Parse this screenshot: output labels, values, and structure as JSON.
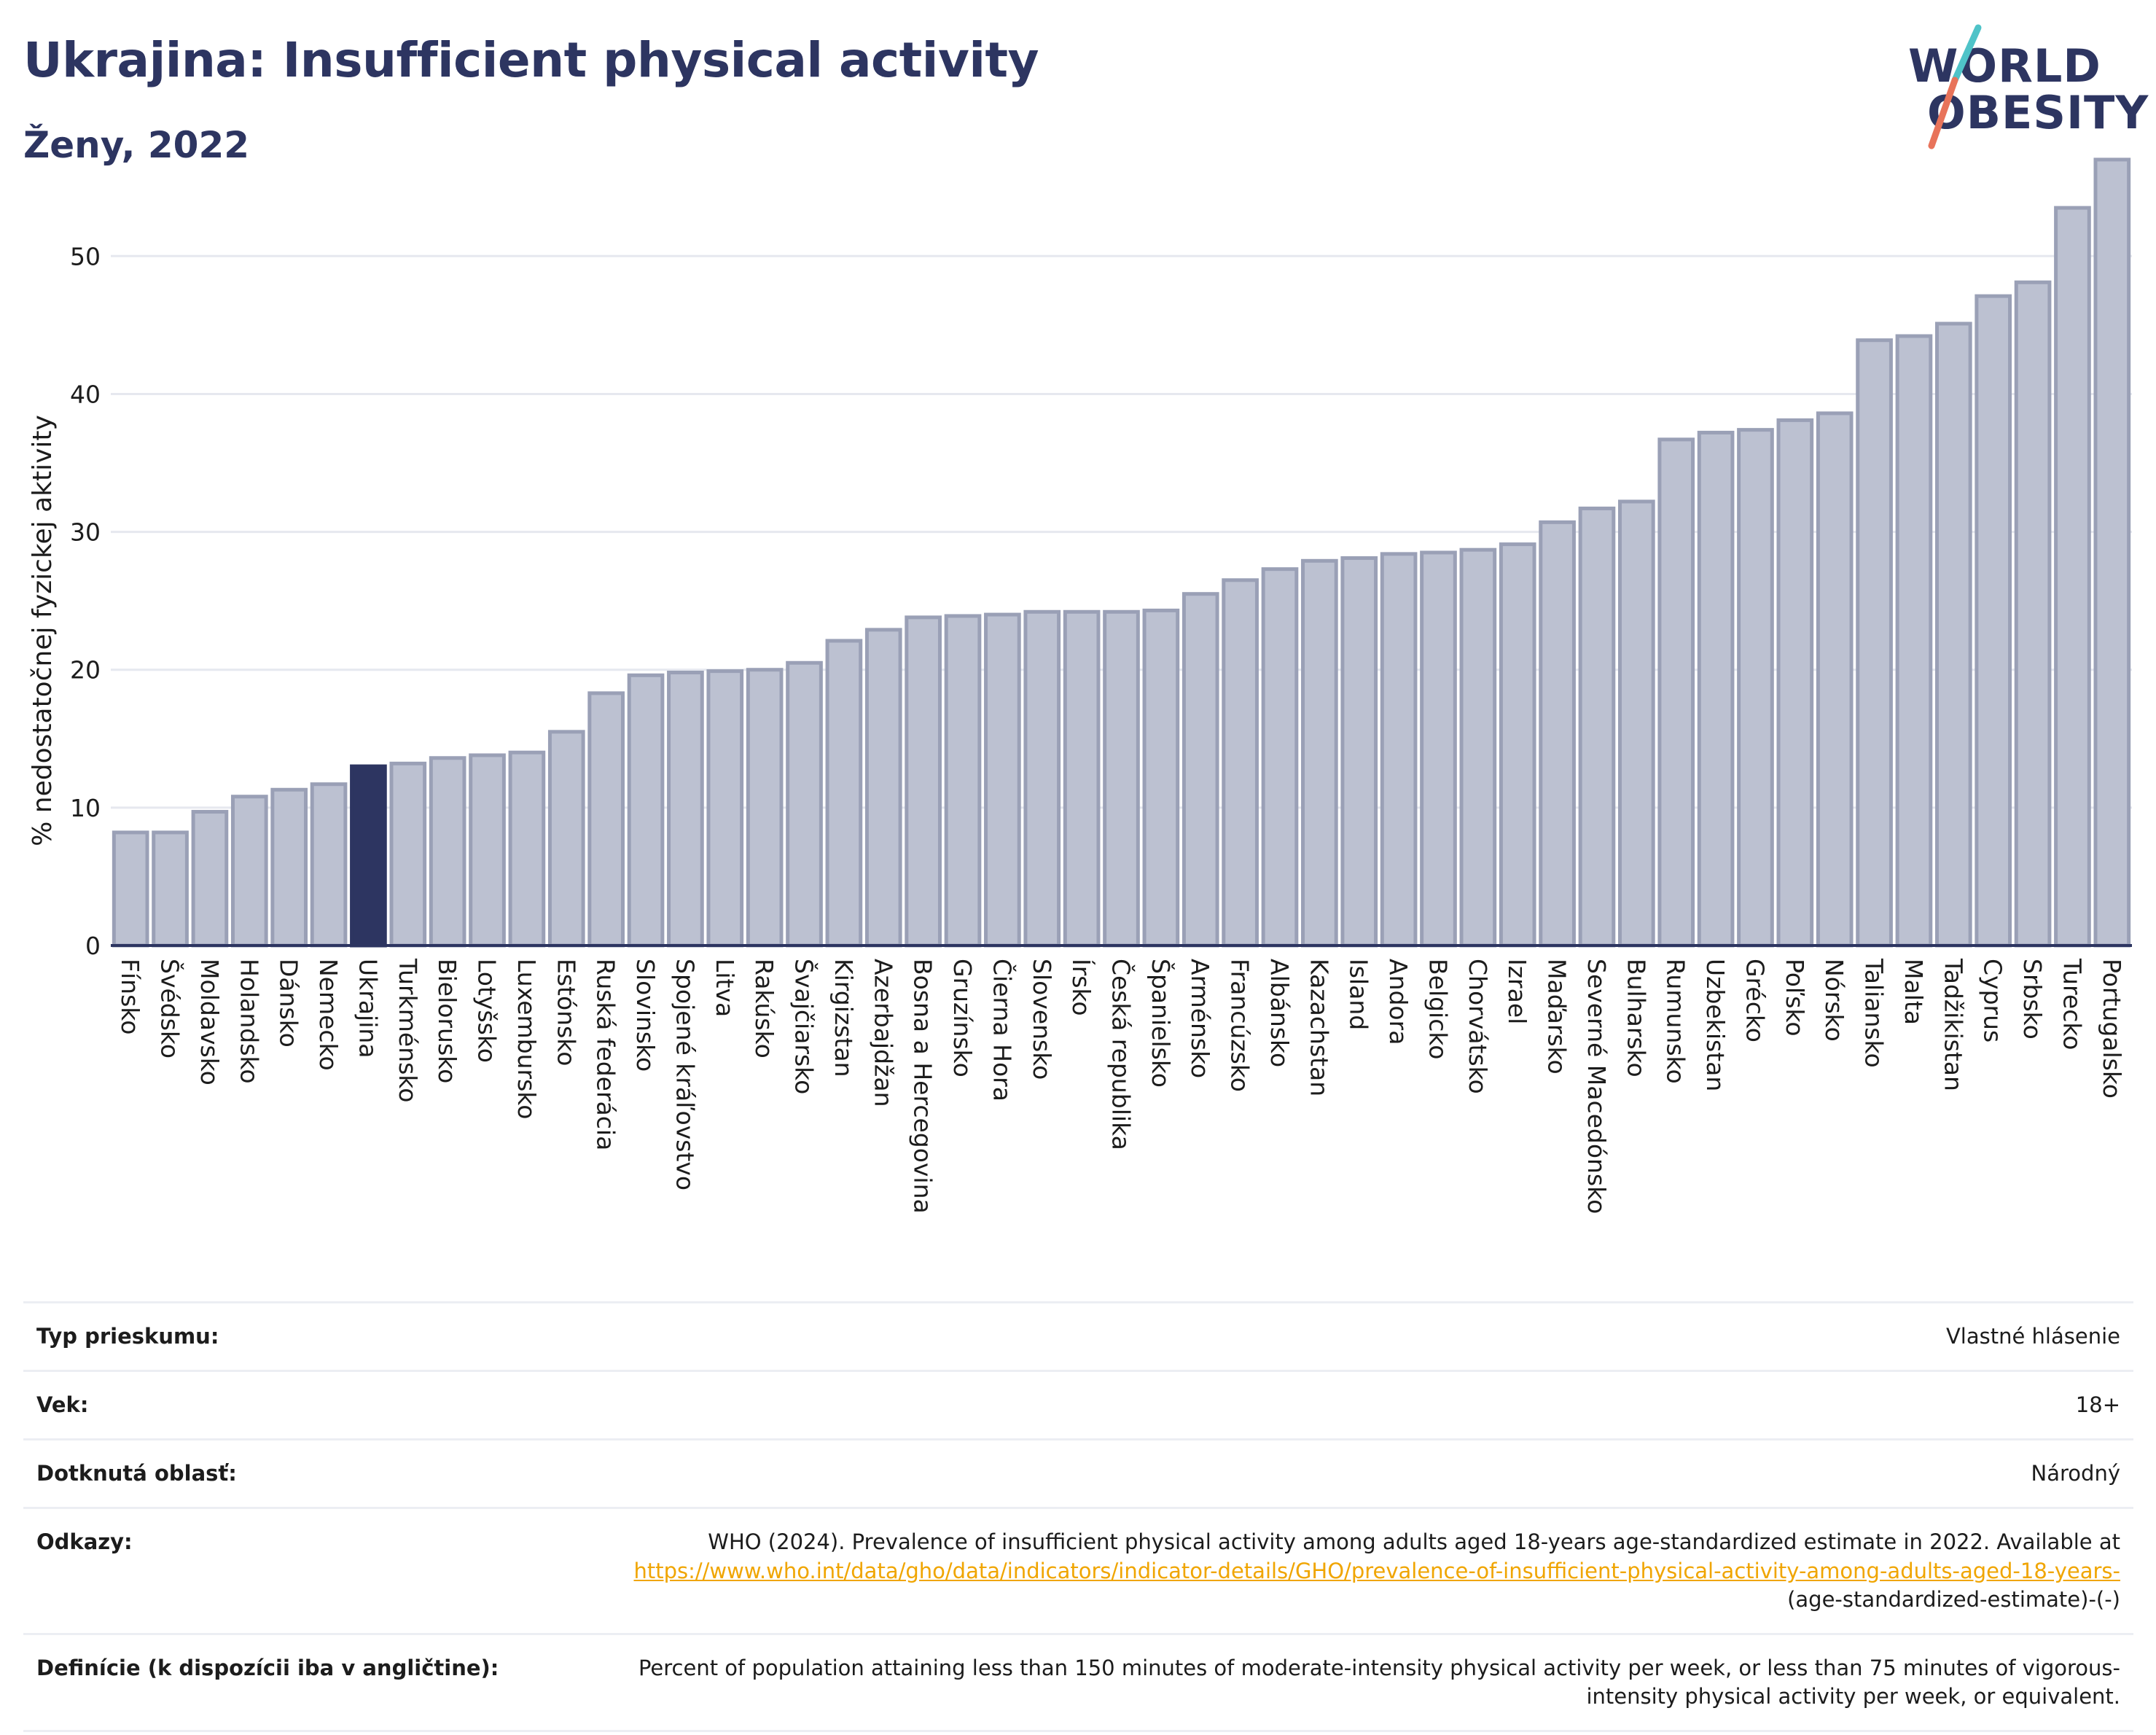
{
  "header": {
    "title": "Ukrajina: Insufficient physical activity",
    "subtitle": "Ženy, 2022"
  },
  "logo": {
    "line1": "WORLD",
    "line2": "OBESITY",
    "slash_colors": [
      "#4fc3c8",
      "#e8735a"
    ]
  },
  "colors": {
    "bar": "#bcc1d1",
    "bar_edge": "#9aa0b6",
    "highlight": "#2d3561",
    "grid": "#e6e8ef",
    "axis": "#2d3561",
    "text": "#1c1c1c",
    "link": "#f0a500"
  },
  "chart_data": {
    "type": "bar",
    "ylabel": "% nedostatočnej fyzickej aktivity",
    "xlabel": "",
    "ylim": [
      0,
      58
    ],
    "yticks": [
      0,
      10,
      20,
      30,
      40,
      50
    ],
    "grid": true,
    "highlight": "Ukrajina",
    "categories": [
      "Fínsko",
      "Švédsko",
      "Moldavsko",
      "Holandsko",
      "Dánsko",
      "Nemecko",
      "Ukrajina",
      "Turkménsko",
      "Bielorusko",
      "Lotyšsko",
      "Luxembursko",
      "Estónsko",
      "Ruská federácia",
      "Slovinsko",
      "Spojené kráľovstvo",
      "Litva",
      "Rakúsko",
      "Švajčiarsko",
      "Kirgizstan",
      "Azerbajdžan",
      "Bosna a Hercegovina",
      "Gruzínsko",
      "Čierna Hora",
      "Slovensko",
      "Írsko",
      "Česká republika",
      "Španielsko",
      "Arménsko",
      "Francúzsko",
      "Albánsko",
      "Kazachstan",
      "Island",
      "Andora",
      "Belgicko",
      "Chorvátsko",
      "Izrael",
      "Maďarsko",
      "Severné Macedónsko",
      "Bulharsko",
      "Rumunsko",
      "Uzbekistan",
      "Grécko",
      "Poľsko",
      "Nórsko",
      "Taliansko",
      "Malta",
      "Tadžikistan",
      "Cyprus",
      "Srbsko",
      "Turecko",
      "Portugalsko"
    ],
    "values": [
      8.2,
      8.2,
      9.7,
      10.8,
      11.3,
      11.7,
      13.0,
      13.2,
      13.6,
      13.8,
      14.0,
      15.5,
      18.3,
      19.6,
      19.8,
      19.9,
      20.0,
      20.5,
      22.1,
      22.9,
      23.8,
      23.9,
      24.0,
      24.2,
      24.2,
      24.2,
      24.3,
      25.5,
      26.5,
      27.3,
      27.9,
      28.1,
      28.4,
      28.5,
      28.7,
      29.1,
      30.7,
      31.7,
      32.2,
      36.7,
      37.2,
      37.4,
      38.1,
      38.6,
      43.9,
      44.2,
      45.1,
      47.1,
      48.1,
      53.5,
      57.0
    ]
  },
  "info": {
    "rows": [
      {
        "key": "Typ prieskumu:",
        "value": "Vlastné hlásenie"
      },
      {
        "key": "Vek:",
        "value": "18+"
      },
      {
        "key": "Dotknutá oblasť:",
        "value": "Národný"
      }
    ],
    "refs": {
      "key": "Odkazy:",
      "text": "WHO (2024). Prevalence of insufficient physical activity among adults aged 18-years age-standardized estimate in 2022. Available at",
      "link": "https://www.who.int/data/gho/data/indicators/indicator-details/GHO/prevalence-of-insufficient-physical-activity-among-adults-aged-18-years-",
      "suffix": "(age-standardized-estimate)-(-)"
    },
    "definition": {
      "key": "Definície (k dispozícii iba v angličtine):",
      "value": "Percent of population attaining less than 150 minutes of moderate-intensity physical activity per week, or less than 75 minutes of vigorous-intensity physical activity per week, or equivalent."
    }
  }
}
